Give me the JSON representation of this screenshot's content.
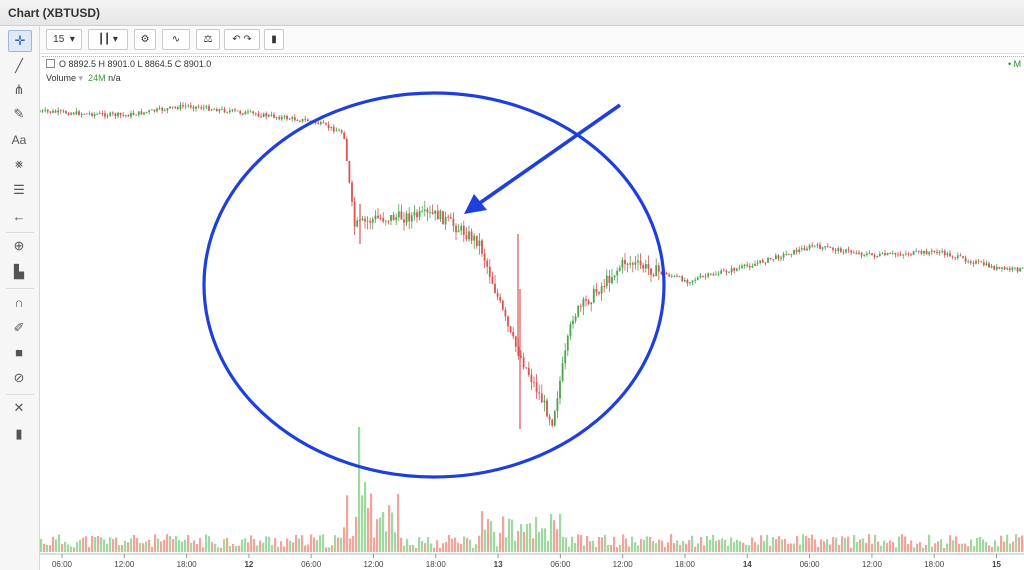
{
  "window": {
    "title": "Chart (XBTUSD)"
  },
  "toolbar": {
    "interval": "15",
    "icons": [
      "candlestick-icon",
      "settings-gear-icon",
      "indicators-icon",
      "compare-scales-icon",
      "undo-icon",
      "redo-icon",
      "bar-chart-icon"
    ]
  },
  "sidebar": {
    "tools": [
      "crosshair-icon",
      "trend-line-icon",
      "pitchfork-icon",
      "brush-icon",
      "text-icon",
      "pattern-icon",
      "fib-icon",
      "arrow-icon",
      "zoom-icon",
      "measure-icon",
      "magnet-icon",
      "lock-drawings-icon",
      "lock-icon",
      "hide-icon",
      "remove-tools-icon",
      "trash-icon"
    ]
  },
  "legend": {
    "ohlc": "O 8892.5  H 8901.0  L 8864.5  C 8901.0",
    "volume_label": "Volume",
    "volume_value": "24M",
    "volume_extra": "n/a",
    "right_marker": "M"
  },
  "chart_data": {
    "type": "candlestick",
    "symbol": "XBTUSD",
    "interval": "15",
    "x_tick_labels": [
      "06:00",
      "12:00",
      "18:00",
      "12",
      "06:00",
      "12:00",
      "18:00",
      "13",
      "06:00",
      "12:00",
      "18:00",
      "14",
      "06:00",
      "12:00",
      "18:00",
      "15"
    ],
    "price_path_description_points": [
      {
        "x": "11 00:00",
        "y": 8920
      },
      {
        "x": "11 12:00",
        "y": 8905
      },
      {
        "x": "11 18:00",
        "y": 8930
      },
      {
        "x": "12 06:00",
        "y": 8890
      },
      {
        "x": "12 09:00",
        "y": 8860
      },
      {
        "x": "12 10:00",
        "y": 8620
      },
      {
        "x": "12 12:00",
        "y": 8640
      },
      {
        "x": "12 18:00",
        "y": 8650
      },
      {
        "x": "12 22:00",
        "y": 8580
      },
      {
        "x": "13 01:00",
        "y": 8340
      },
      {
        "x": "13 05:00",
        "y": 8120
      },
      {
        "x": "13 07:00",
        "y": 8390
      },
      {
        "x": "13 12:00",
        "y": 8530
      },
      {
        "x": "13 18:00",
        "y": 8480
      },
      {
        "x": "14 00:00",
        "y": 8520
      },
      {
        "x": "14 06:00",
        "y": 8570
      },
      {
        "x": "14 12:00",
        "y": 8545
      },
      {
        "x": "14 18:00",
        "y": 8555
      },
      {
        "x": "15 00:00",
        "y": 8510
      }
    ],
    "annotations": [
      "blue-ellipse",
      "blue-arrow"
    ],
    "colors": {
      "up": "#4aa44a",
      "down": "#d9534f",
      "vol_up": "#9fd9a0",
      "vol_down": "#f2a49a",
      "annotation": "#1f3fdd"
    }
  }
}
